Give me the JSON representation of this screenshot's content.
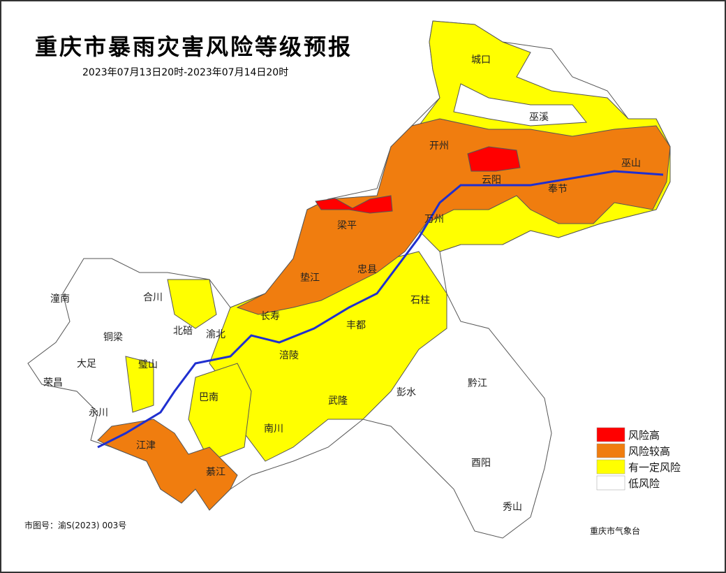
{
  "header": {
    "title": "重庆市暴雨灾害风险等级预报",
    "subtitle": "2023年07月13日20时-2023年07月14日20时"
  },
  "legend": [
    {
      "label": "风险高",
      "color": "#ff0000"
    },
    {
      "label": "风险较高",
      "color": "#f07d0f"
    },
    {
      "label": "有一定风险",
      "color": "#ffff00"
    },
    {
      "label": "低风险",
      "color": "#ffffff"
    }
  ],
  "districts": [
    "城口",
    "巫溪",
    "开州",
    "云阳",
    "奉节",
    "巫山",
    "梁平",
    "万州",
    "忠县",
    "垫江",
    "石柱",
    "长寿",
    "丰都",
    "涪陵",
    "潼南",
    "合川",
    "北碚",
    "渝北",
    "铜梁",
    "大足",
    "荣昌",
    "璧山",
    "永川",
    "巴南",
    "南川",
    "武隆",
    "彭水",
    "黔江",
    "酉阳",
    "秀山",
    "江津",
    "綦江"
  ],
  "footer": {
    "map_number": "市图号：渝S(2023) 003号",
    "issuer": "重庆市气象台"
  }
}
